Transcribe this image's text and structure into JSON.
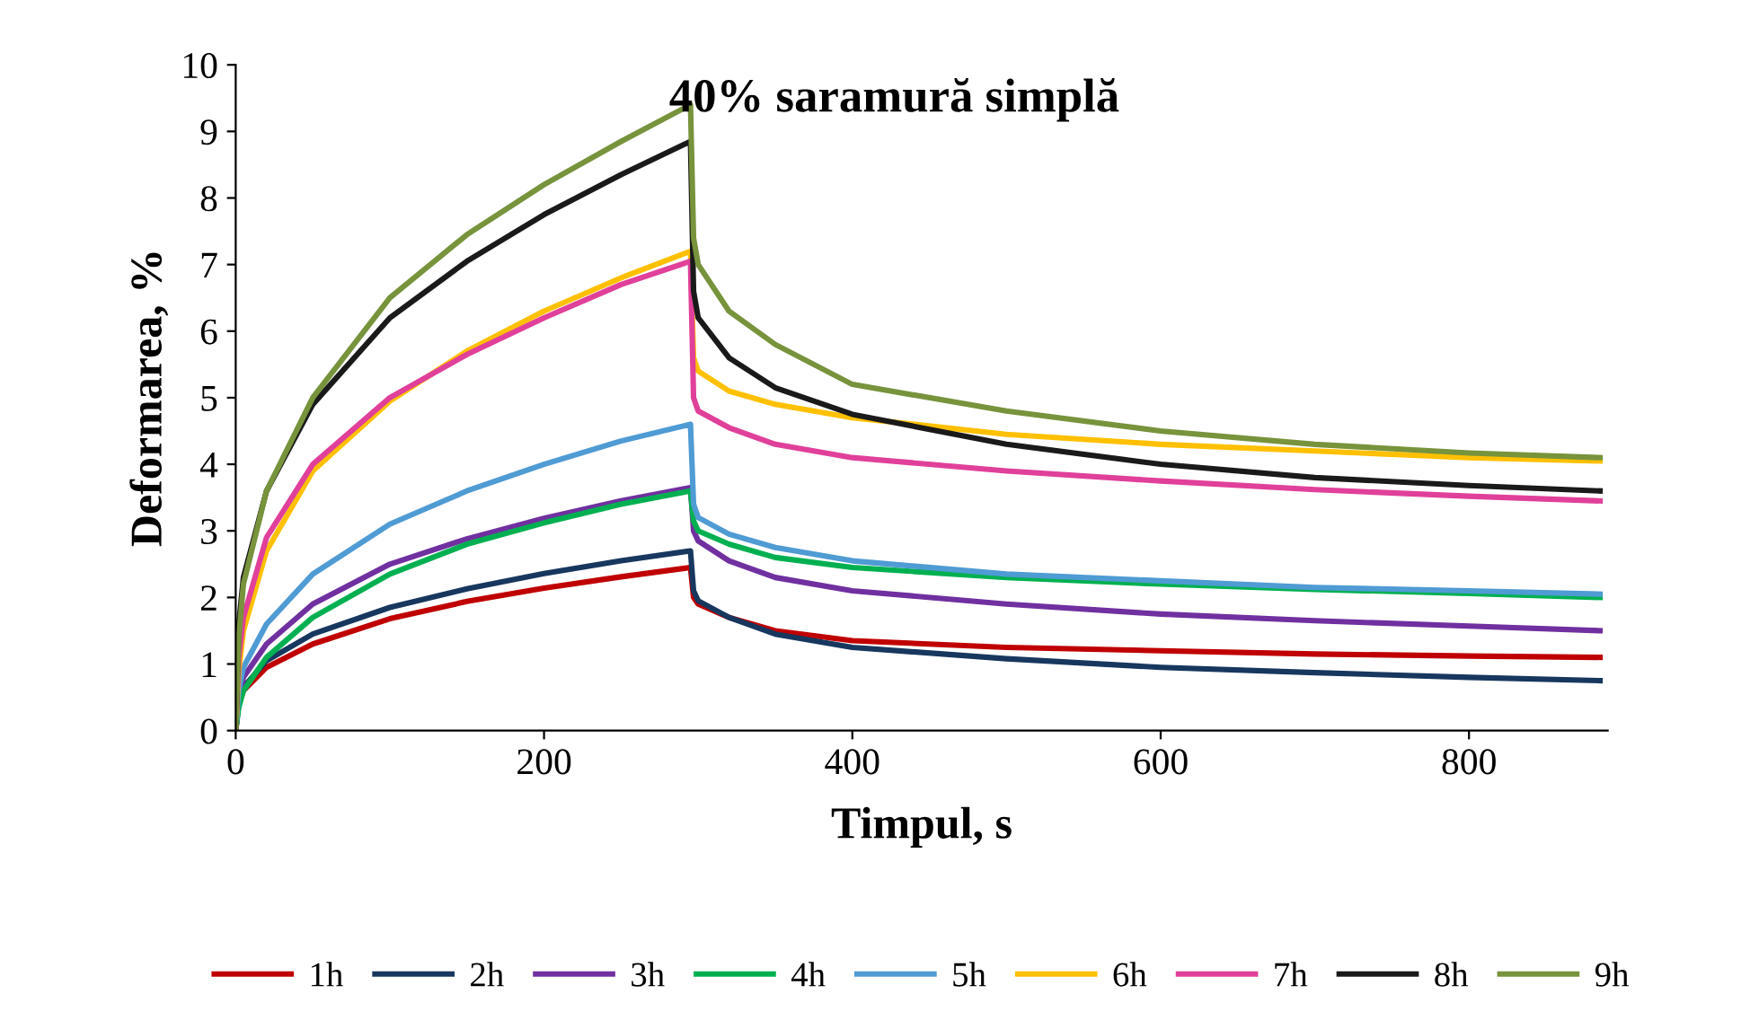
{
  "chart_data": {
    "type": "line",
    "title": "40% saramură simplă",
    "xlabel": "Timpul, s",
    "ylabel": "Deformarea, %",
    "x": [
      0,
      2,
      5,
      20,
      50,
      100,
      150,
      200,
      250,
      295,
      297,
      300,
      320,
      350,
      400,
      500,
      600,
      700,
      800,
      885
    ],
    "series": [
      {
        "name": "1h",
        "color": "#c00000",
        "values": [
          0,
          0.4,
          0.6,
          0.95,
          1.3,
          1.68,
          1.94,
          2.14,
          2.31,
          2.45,
          2.0,
          1.9,
          1.7,
          1.5,
          1.35,
          1.25,
          1.2,
          1.15,
          1.12,
          1.1
        ]
      },
      {
        "name": "2h",
        "color": "#17375e",
        "values": [
          0,
          0.45,
          0.65,
          1.05,
          1.45,
          1.85,
          2.13,
          2.36,
          2.55,
          2.7,
          2.1,
          1.95,
          1.7,
          1.45,
          1.25,
          1.08,
          0.95,
          0.87,
          0.8,
          0.75
        ]
      },
      {
        "name": "3h",
        "color": "#7030a0",
        "values": [
          0,
          0.5,
          0.8,
          1.3,
          1.9,
          2.5,
          2.88,
          3.19,
          3.45,
          3.65,
          3.0,
          2.85,
          2.55,
          2.3,
          2.1,
          1.9,
          1.75,
          1.65,
          1.57,
          1.5
        ]
      },
      {
        "name": "4h",
        "color": "#00b050",
        "values": [
          0,
          0.35,
          0.6,
          1.1,
          1.7,
          2.35,
          2.8,
          3.12,
          3.4,
          3.6,
          3.15,
          3.0,
          2.8,
          2.6,
          2.45,
          2.3,
          2.2,
          2.12,
          2.06,
          2.0
        ]
      },
      {
        "name": "5h",
        "color": "#4f9bd4",
        "values": [
          0,
          0.6,
          0.95,
          1.6,
          2.35,
          3.1,
          3.6,
          4.0,
          4.35,
          4.6,
          3.4,
          3.2,
          2.95,
          2.75,
          2.55,
          2.35,
          2.25,
          2.15,
          2.1,
          2.05
        ]
      },
      {
        "name": "6h",
        "color": "#ffc000",
        "values": [
          0,
          0.9,
          1.5,
          2.7,
          3.9,
          4.95,
          5.7,
          6.3,
          6.8,
          7.2,
          5.6,
          5.4,
          5.1,
          4.9,
          4.7,
          4.45,
          4.3,
          4.2,
          4.1,
          4.05
        ]
      },
      {
        "name": "7h",
        "color": "#e0409a",
        "values": [
          0,
          1.1,
          1.7,
          2.9,
          4.0,
          5.0,
          5.65,
          6.2,
          6.7,
          7.05,
          5.0,
          4.8,
          4.55,
          4.3,
          4.1,
          3.9,
          3.75,
          3.62,
          3.52,
          3.45
        ]
      },
      {
        "name": "8h",
        "color": "#1a1a1a",
        "values": [
          0,
          1.6,
          2.3,
          3.6,
          4.9,
          6.2,
          7.05,
          7.75,
          8.35,
          8.85,
          6.6,
          6.2,
          5.6,
          5.15,
          4.75,
          4.3,
          4.0,
          3.8,
          3.68,
          3.6
        ]
      },
      {
        "name": "9h",
        "color": "#77933c",
        "values": [
          0,
          1.4,
          2.2,
          3.6,
          5.0,
          6.5,
          7.45,
          8.2,
          8.85,
          9.4,
          7.4,
          7.0,
          6.3,
          5.8,
          5.2,
          4.8,
          4.5,
          4.3,
          4.17,
          4.1
        ]
      }
    ],
    "xlim": [
      0,
      890
    ],
    "xticks": [
      0,
      200,
      400,
      600,
      800
    ],
    "ylim": [
      0,
      10
    ],
    "yticks": [
      0,
      1,
      2,
      3,
      4,
      5,
      6,
      7,
      8,
      9,
      10
    ],
    "grid": false,
    "legend": "bottom",
    "marker": "none",
    "line_style": "solid"
  }
}
